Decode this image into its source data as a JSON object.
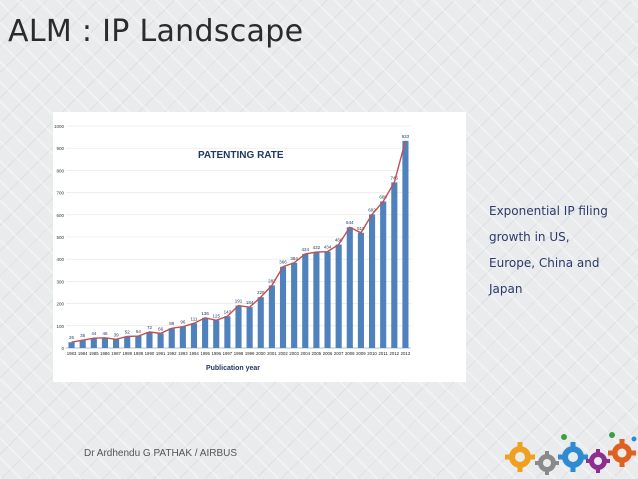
{
  "slide": {
    "title": "ALM : IP Landscape",
    "side_text": [
      "Exponential IP filing",
      "growth in US,",
      "Europe, China and",
      "Japan"
    ],
    "footer": "Dr Ardhendu G PATHAK / AIRBUS"
  },
  "colors": {
    "bar": "#4f81bd",
    "line": "#c0504d",
    "label": "#1f3864",
    "title_text": "#1f3864"
  },
  "chart_data": {
    "type": "bar",
    "title": "PATENTING RATE",
    "xlabel": "Publication year",
    "ylabel": "",
    "ylim": [
      0,
      1000
    ],
    "yticks": [
      0,
      100,
      200,
      300,
      400,
      500,
      600,
      700,
      800,
      900,
      1000
    ],
    "categories": [
      "1983",
      "1984",
      "1985",
      "1986",
      "1987",
      "1988",
      "1989",
      "1990",
      "1991",
      "1992",
      "1993",
      "1994",
      "1995",
      "1996",
      "1997",
      "1998",
      "1999",
      "2000",
      "2001",
      "2002",
      "2003",
      "2004",
      "2005",
      "2006",
      "2007",
      "2008",
      "2009",
      "2010",
      "2011",
      "2012",
      "2013"
    ],
    "values": [
      26,
      35,
      44,
      46,
      39,
      52,
      54,
      72,
      66,
      89,
      96,
      111,
      136,
      125,
      143,
      191,
      184,
      229,
      282,
      366,
      384,
      424,
      432,
      434,
      466,
      544,
      519,
      602,
      660,
      746,
      933
    ],
    "overlay_line": true
  }
}
